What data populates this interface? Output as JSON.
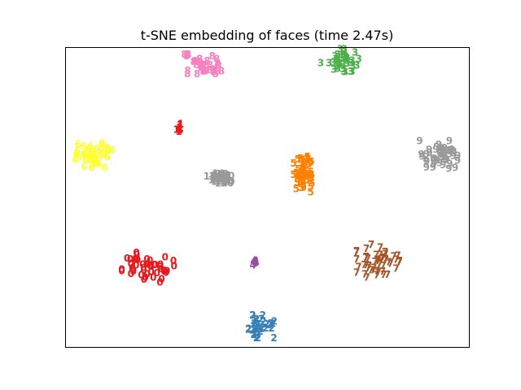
{
  "chart_data": {
    "type": "scatter",
    "title": "t-SNE embedding of faces (time 2.47s)",
    "xlabel": "",
    "ylabel": "",
    "xlim": [
      0,
      1
    ],
    "ylim": [
      0,
      1
    ],
    "axis_ticks": "none",
    "grid": false,
    "marker": "digit-label",
    "clusters": [
      {
        "label": "0",
        "color": "#e41a1c",
        "center": [
          0.205,
          0.265
        ],
        "spread": [
          0.055,
          0.042
        ],
        "count": 45
      },
      {
        "label": "1",
        "color": "#e41a1c",
        "center": [
          0.285,
          0.73
        ],
        "spread": [
          0.008,
          0.012
        ],
        "count": 10
      },
      {
        "label": "2",
        "color": "#377eb8",
        "center": [
          0.485,
          0.068
        ],
        "spread": [
          0.035,
          0.032
        ],
        "count": 35
      },
      {
        "label": "3",
        "color": "#4daf4a",
        "center": [
          0.68,
          0.955
        ],
        "spread": [
          0.04,
          0.032
        ],
        "count": 38
      },
      {
        "label": "4",
        "color": "#984ea3",
        "center": [
          0.47,
          0.282
        ],
        "spread": [
          0.006,
          0.008
        ],
        "count": 10
      },
      {
        "label": "5",
        "color": "#ff7f00",
        "center": [
          0.595,
          0.575
        ],
        "spread": [
          0.025,
          0.05
        ],
        "count": 50
      },
      {
        "label": "6",
        "color": "#ffff33",
        "center": [
          0.07,
          0.64
        ],
        "spread": [
          0.04,
          0.036
        ],
        "count": 42
      },
      {
        "label": "7",
        "color": "#a65628",
        "center": [
          0.775,
          0.282
        ],
        "spread": [
          0.045,
          0.05
        ],
        "count": 48
      },
      {
        "label": "8",
        "color": "#f781bf",
        "center": [
          0.345,
          0.935
        ],
        "spread": [
          0.042,
          0.035
        ],
        "count": 40
      },
      {
        "label": "9",
        "color": "#999999",
        "center": [
          0.925,
          0.64
        ],
        "spread": [
          0.04,
          0.04
        ],
        "count": 45
      },
      {
        "label": "10",
        "color": "#999999",
        "center": [
          0.38,
          0.565
        ],
        "spread": [
          0.02,
          0.016
        ],
        "count": 24
      }
    ]
  }
}
